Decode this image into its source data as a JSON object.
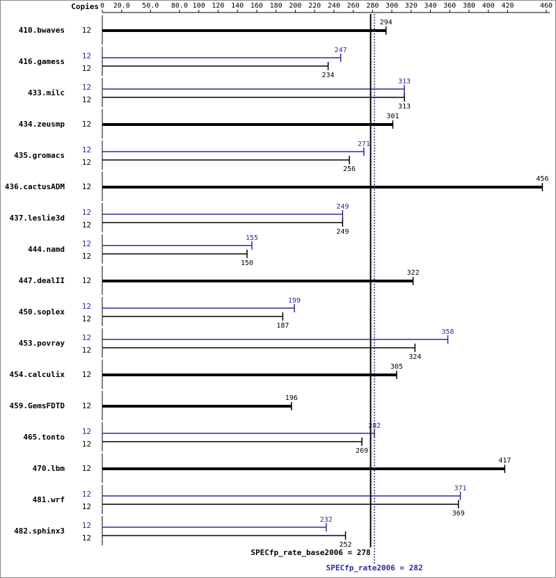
{
  "chart_data": {
    "type": "bar",
    "orientation": "horizontal",
    "copies_label": "Copies",
    "categories": [
      "410.bwaves",
      "416.gamess",
      "433.milc",
      "434.zeusmp",
      "435.gromacs",
      "436.cactusADM",
      "437.leslie3d",
      "444.namd",
      "447.dealII",
      "450.soplex",
      "453.povray",
      "454.calculix",
      "459.GemsFDTD",
      "465.tonto",
      "470.lbm",
      "481.wrf",
      "482.sphinx3"
    ],
    "series": [
      {
        "color": "#000000",
        "copies": [
          12,
          12,
          12,
          12,
          12,
          12,
          12,
          12,
          12,
          12,
          12,
          12,
          12,
          12,
          12,
          12,
          12
        ],
        "values": [
          294,
          234,
          313,
          301,
          256,
          456,
          249,
          150,
          322,
          187,
          324,
          305,
          196,
          269,
          417,
          369,
          252
        ]
      },
      {
        "color": "#2a2a9c",
        "copies": [
          null,
          12,
          12,
          null,
          12,
          null,
          12,
          12,
          null,
          12,
          12,
          null,
          null,
          12,
          null,
          12,
          12
        ],
        "values": [
          null,
          247,
          313,
          null,
          271,
          null,
          249,
          155,
          null,
          199,
          358,
          null,
          null,
          282,
          null,
          371,
          232
        ]
      }
    ],
    "xlim": [
      0,
      460
    ],
    "xticks": [
      0,
      {
        "value": 20,
        "label": "20.0"
      },
      {
        "value": 50,
        "label": "50.0"
      },
      {
        "value": 80,
        "label": "80.0"
      },
      100,
      120,
      140,
      160,
      180,
      200,
      220,
      240,
      260,
      280,
      300,
      320,
      340,
      360,
      380,
      400,
      420,
      460
    ],
    "references": [
      {
        "label": "SPECfp_rate_base2006 = 278",
        "value": 278,
        "color": "#000000",
        "dotted": false
      },
      {
        "label": "SPECfp_rate2006 = 282",
        "value": 282,
        "color": "#2a2a9c",
        "dotted": true
      }
    ]
  }
}
